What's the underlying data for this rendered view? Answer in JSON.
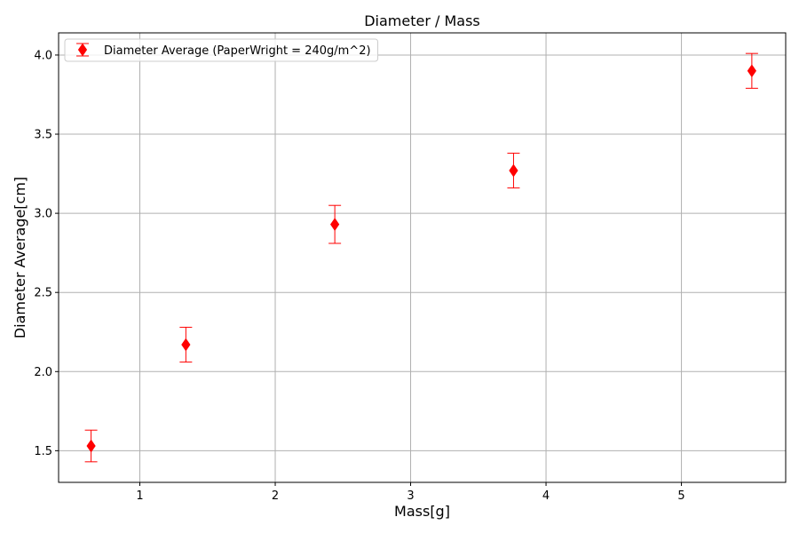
{
  "chart_data": {
    "type": "scatter",
    "title": "Diameter / Mass",
    "xlabel": "Mass[g]",
    "ylabel": "Diameter Average[cm]",
    "xlim": [
      0.4,
      5.77
    ],
    "ylim": [
      1.3,
      4.14
    ],
    "xticks": [
      1,
      2,
      3,
      4,
      5
    ],
    "yticks": [
      1.5,
      2.0,
      2.5,
      3.0,
      3.5,
      4.0
    ],
    "xtick_labels": [
      "1",
      "2",
      "3",
      "4",
      "5"
    ],
    "ytick_labels": [
      "1.5",
      "2.0",
      "2.5",
      "3.0",
      "3.5",
      "4.0"
    ],
    "grid": true,
    "legend_position": "top-left",
    "series": [
      {
        "name": "Diameter Average (PaperWright = 240g/m^2)",
        "color": "#ff0000",
        "marker": "diamond",
        "x": [
          0.64,
          1.34,
          2.44,
          3.76,
          5.52
        ],
        "y": [
          1.53,
          2.17,
          2.93,
          3.27,
          3.9
        ],
        "yerr": [
          0.1,
          0.11,
          0.12,
          0.11,
          0.11
        ]
      }
    ]
  }
}
